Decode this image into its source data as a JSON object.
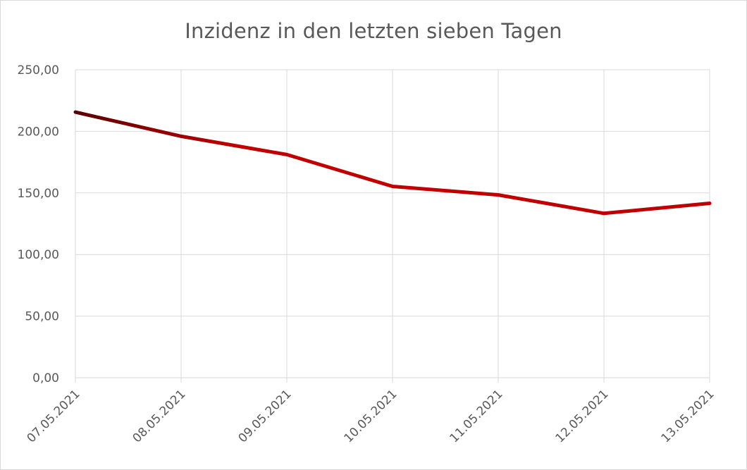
{
  "chart_data": {
    "type": "line",
    "title": "Inzidenz in den letzten sieben Tagen",
    "xlabel": "",
    "ylabel": "",
    "categories": [
      "07.05.2021",
      "08.05.2021",
      "09.05.2021",
      "10.05.2021",
      "11.05.2021",
      "12.05.2021",
      "13.05.2021"
    ],
    "series": [
      {
        "values": [
          215.6,
          196.0,
          181.1,
          155.3,
          148.4,
          133.4,
          141.6
        ],
        "color": "#c00000"
      }
    ],
    "ylim": [
      0,
      250
    ],
    "yticks": [
      0,
      50,
      100,
      150,
      200,
      250
    ],
    "ytick_labels": [
      "0,00",
      "50,00",
      "100,00",
      "150,00",
      "200,00",
      "250,00"
    ],
    "grid": true,
    "legend": "none",
    "colors": {
      "line": "#c00000",
      "line_start": "#5a0000",
      "grid": "#d9d9d9",
      "text": "#595959"
    }
  }
}
